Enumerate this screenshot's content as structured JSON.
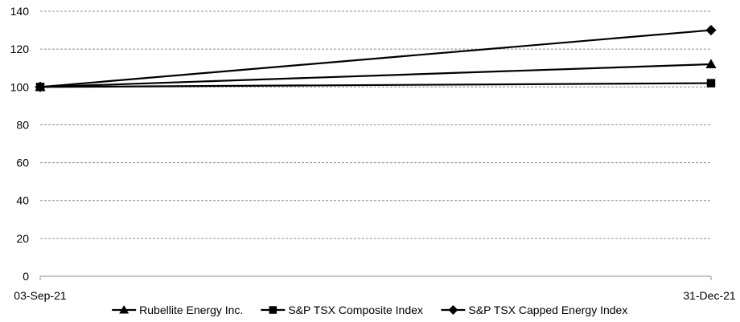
{
  "chart_data": {
    "type": "line",
    "title": "",
    "xlabel": "",
    "ylabel": "",
    "x": [
      "03-Sep-21",
      "31-Dec-21"
    ],
    "ylim": [
      0,
      140
    ],
    "yticks": [
      0,
      20,
      40,
      60,
      80,
      100,
      120,
      140
    ],
    "grid": true,
    "legend_position": "bottom",
    "series": [
      {
        "name": "Rubellite Energy Inc.",
        "values": [
          100,
          112
        ],
        "marker": "triangle",
        "color": "#000000"
      },
      {
        "name": "S&P TSX Composite Index",
        "values": [
          100,
          102
        ],
        "marker": "square",
        "color": "#000000"
      },
      {
        "name": "S&P TSX Capped Energy Index",
        "values": [
          100,
          130
        ],
        "marker": "diamond",
        "color": "#000000"
      }
    ]
  }
}
